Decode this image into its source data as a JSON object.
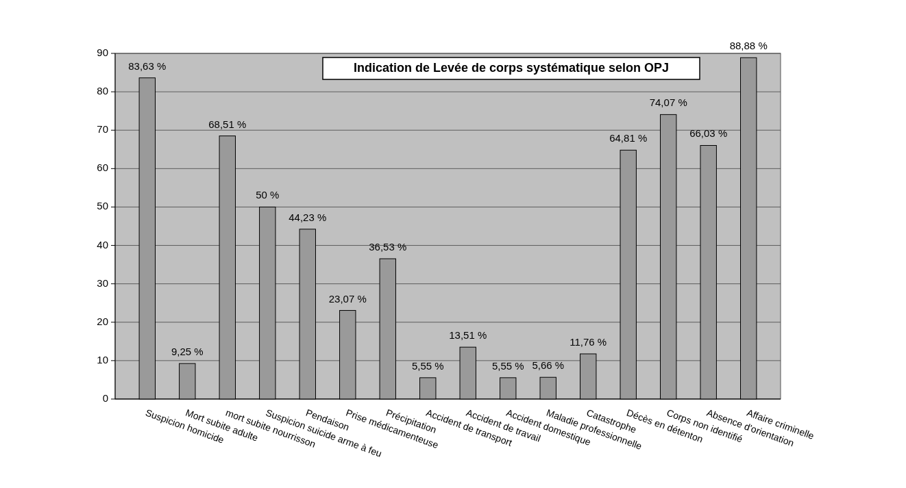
{
  "chart_data": {
    "type": "bar",
    "title": "Indication de Levée de corps systématique selon OPJ",
    "categories": [
      "Suspicion homicide",
      "Mort subite adulte",
      "mort subite nourrisson",
      "Suspicion suicide arme à feu",
      "Pendaison",
      "Prise médicamenteuse",
      "Précipitation",
      "Accident de transport",
      "Accident de travail",
      "Accident domestique",
      "Maladie professionnelle",
      "Catastrophe",
      "Décès en détenton",
      "Corps non identifié",
      "Absence d'orientation",
      "Affaire criminelle"
    ],
    "values": [
      83.63,
      9.25,
      68.51,
      50,
      44.23,
      23.07,
      36.53,
      5.55,
      13.51,
      5.55,
      5.66,
      11.76,
      64.81,
      74.07,
      66.03,
      88.88
    ],
    "value_labels": [
      "83,63 %",
      "9,25 %",
      "68,51 %",
      "50 %",
      "44,23 %",
      "23,07 %",
      "36,53 %",
      "5,55 %",
      "13,51 %",
      "5,55 %",
      "5,66 %",
      "11,76 %",
      "64,81 %",
      "74,07 %",
      "66,03 %",
      "88,88 %"
    ],
    "color": "#9a9a9a",
    "ylim": [
      0,
      90
    ],
    "yticks": [
      0,
      10,
      20,
      30,
      40,
      50,
      60,
      70,
      80,
      90
    ],
    "grid": "y"
  }
}
